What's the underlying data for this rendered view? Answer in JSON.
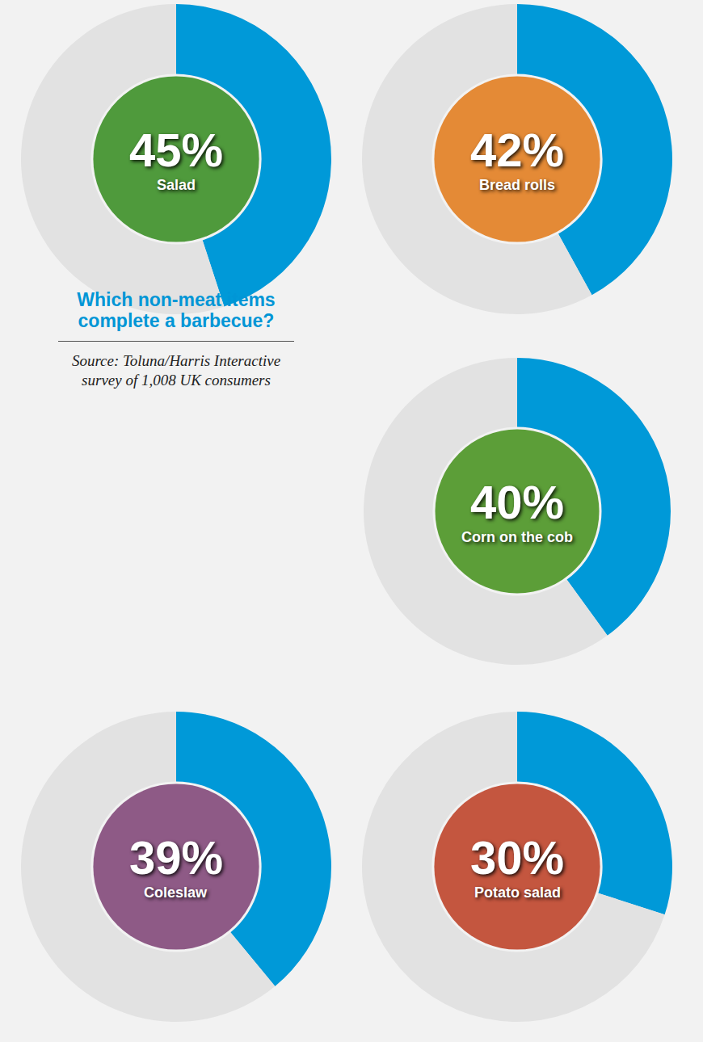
{
  "title": "Which non-meat items complete a barbecue?",
  "source": "Source: Toluna/Harris Interactive survey of 1,008 UK consumers",
  "chart_data": [
    {
      "type": "pie",
      "categories": [
        "Salad"
      ],
      "values": [
        45
      ],
      "value_labels": [
        "45%"
      ],
      "colors": [
        "#0099d8",
        "#e2e2e2"
      ],
      "data_labels": true
    },
    {
      "type": "pie",
      "categories": [
        "Bread rolls"
      ],
      "values": [
        42
      ],
      "value_labels": [
        "42%"
      ],
      "colors": [
        "#0099d8",
        "#e2e2e2"
      ],
      "data_labels": true
    },
    {
      "type": "pie",
      "categories": [
        "Corn on the cob"
      ],
      "values": [
        40
      ],
      "value_labels": [
        "40%"
      ],
      "colors": [
        "#0099d8",
        "#e2e2e2"
      ],
      "data_labels": true
    },
    {
      "type": "pie",
      "categories": [
        "Coleslaw"
      ],
      "values": [
        39
      ],
      "value_labels": [
        "39%"
      ],
      "colors": [
        "#0099d8",
        "#e2e2e2"
      ],
      "data_labels": true
    },
    {
      "type": "pie",
      "categories": [
        "Potato salad"
      ],
      "values": [
        30
      ],
      "value_labels": [
        "30%"
      ],
      "colors": [
        "#0099d8",
        "#e2e2e2"
      ],
      "data_labels": true
    }
  ]
}
